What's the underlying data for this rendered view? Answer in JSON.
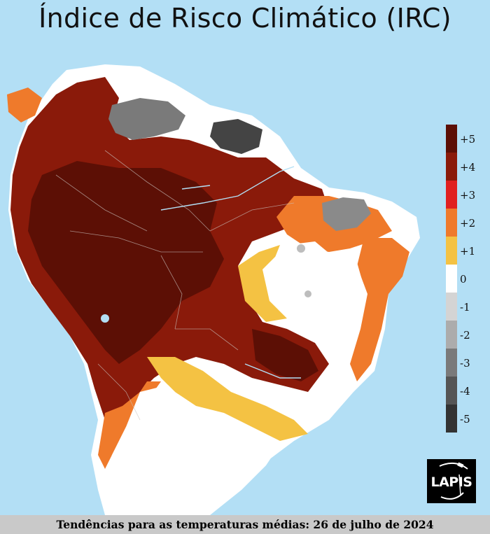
{
  "title": "Índice de Risco Climático (IRC)",
  "legend": {
    "items": [
      {
        "label": "+5",
        "color": "#5c0f05"
      },
      {
        "label": "+4",
        "color": "#8a1a0a"
      },
      {
        "label": "+3",
        "color": "#e02020"
      },
      {
        "label": "+2",
        "color": "#ef7a2b"
      },
      {
        "label": "+1",
        "color": "#f4c243"
      },
      {
        "label": "0",
        "color": "#ffffff"
      },
      {
        "label": "-1",
        "color": "#d4d4d4"
      },
      {
        "label": "-2",
        "color": "#acacac"
      },
      {
        "label": "-3",
        "color": "#7a7a7a"
      },
      {
        "label": "-4",
        "color": "#555555"
      },
      {
        "label": "-5",
        "color": "#333333"
      }
    ]
  },
  "logo": {
    "text": "LAPIS"
  },
  "footer": {
    "caption": "Tendências para as temperaturas médias: 26 de julho de 2024"
  },
  "colors": {
    "ocean": "#b3dff5",
    "water": "#b3dff5",
    "borders": "#c9c0bd"
  }
}
